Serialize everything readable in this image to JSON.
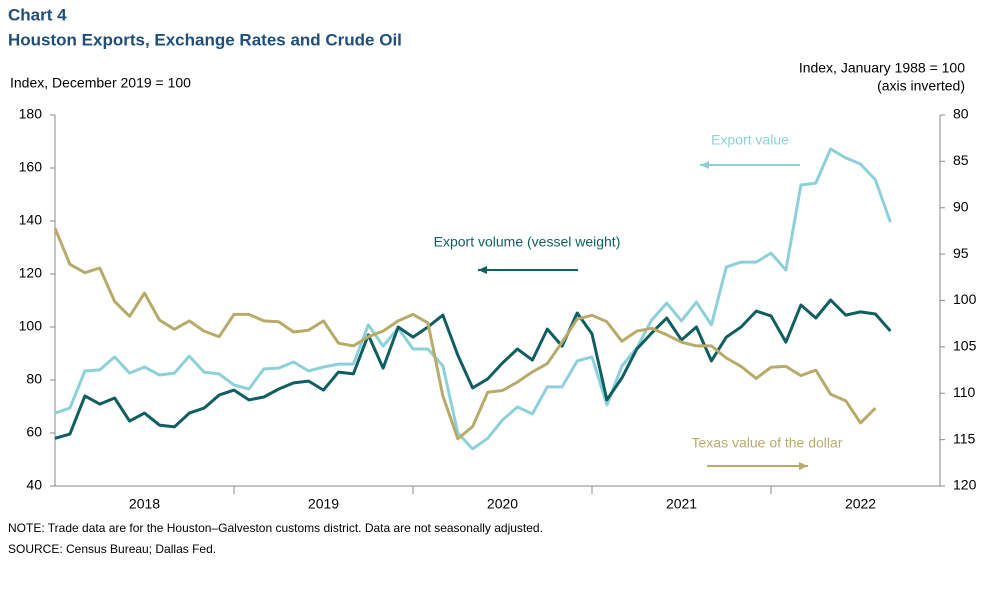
{
  "chart_data": {
    "type": "line",
    "label": "Chart 4",
    "title": "Houston Exports, Exchange Rates and Crude Oil",
    "ylabel": "Index,  December 2019 = 100",
    "y2label": "Index,  January  1988 = 100",
    "y2label_note": "(axis inverted)",
    "note": "NOTE: Trade  data are for the Houston–Galveston  customs district. Data are not seasonally adjusted.",
    "source": "SOURCE: Census Bureau;  Dallas Fed.",
    "x": [
      2018,
      2018.083,
      2018.167,
      2018.25,
      2018.333,
      2018.417,
      2018.5,
      2018.583,
      2018.667,
      2018.75,
      2018.833,
      2018.917,
      2019,
      2019.083,
      2019.167,
      2019.25,
      2019.333,
      2019.417,
      2019.5,
      2019.583,
      2019.667,
      2019.75,
      2019.833,
      2019.917,
      2020,
      2020.083,
      2020.167,
      2020.25,
      2020.333,
      2020.417,
      2020.5,
      2020.583,
      2020.667,
      2020.75,
      2020.833,
      2020.917,
      2021,
      2021.083,
      2021.167,
      2021.25,
      2021.333,
      2021.417,
      2021.5,
      2021.583,
      2021.667,
      2021.75,
      2021.833,
      2021.917,
      2022,
      2022.083,
      2022.167,
      2022.25,
      2022.333,
      2022.417,
      2022.5,
      2022.583,
      2022.667
    ],
    "xlim": [
      2018,
      2022.944
    ],
    "xticks": [
      {
        "value": 2018.5,
        "label": "2018"
      },
      {
        "value": 2019.5,
        "label": "2019"
      },
      {
        "value": 2020.5,
        "label": "2020"
      },
      {
        "value": 2021.5,
        "label": "2021"
      },
      {
        "value": 2022.5,
        "label": "2022"
      }
    ],
    "xdividers": [
      2019,
      2020,
      2021,
      2022
    ],
    "ylim": [
      40,
      180
    ],
    "yticks": [
      40,
      60,
      80,
      100,
      120,
      140,
      160,
      180
    ],
    "y2lim": [
      80,
      120
    ],
    "y2ticks": [
      80,
      85,
      90,
      95,
      100,
      105,
      110,
      115,
      120
    ],
    "y2_inverted": true,
    "series": [
      {
        "name": "Export value",
        "color": "#8dd0d9",
        "values": [
          67.5,
          69.4,
          83.4,
          83.8,
          88.7,
          82.6,
          84.9,
          81.9,
          82.6,
          89,
          83,
          82.3,
          78.1,
          76.6,
          84.2,
          84.5,
          86.8,
          83.4,
          84.9,
          86,
          86,
          100.8,
          92.8,
          99.6,
          91.7,
          91.7,
          85.3,
          60,
          54,
          58,
          64.9,
          69.8,
          67.2,
          77.4,
          77.4,
          87.2,
          88.7,
          70.6,
          85.3,
          92.1,
          102.6,
          109,
          102.3,
          109.4,
          100.8,
          122.6,
          124.5,
          124.5,
          127.9,
          121.5,
          153.6,
          154.3,
          167.2,
          163.8,
          161.5,
          155.5,
          139.6
        ]
      },
      {
        "name": "Export volume (vessel weight)",
        "color": "#0f5e62",
        "values": [
          58,
          59.6,
          74,
          70.9,
          73.2,
          64.5,
          67.5,
          63,
          62.3,
          67.5,
          69.4,
          74.3,
          76.2,
          72.5,
          73.6,
          76.6,
          78.9,
          79.6,
          76.2,
          83,
          82.3,
          97,
          84.5,
          100,
          96.2,
          100,
          104.5,
          89.4,
          77,
          80.4,
          86.4,
          91.7,
          87.5,
          99.2,
          92.8,
          105.3,
          97.4,
          72.5,
          80.8,
          91.7,
          97.7,
          103.4,
          95.1,
          100,
          87.2,
          96.2,
          100,
          106,
          104.2,
          94.3,
          108.3,
          103.4,
          110.2,
          104.5,
          105.7,
          104.9,
          98.5
        ]
      },
      {
        "name": "Texas value  of the dollar",
        "color": "#b7ab6a",
        "axis": "y2",
        "values": [
          92.2,
          96.1,
          97,
          96.5,
          100.1,
          101.7,
          99.2,
          102.1,
          103.1,
          102.2,
          103.3,
          103.9,
          101.5,
          101.5,
          102.2,
          102.3,
          103.4,
          103.2,
          102.2,
          104.6,
          104.9,
          103.9,
          103.3,
          102.2,
          101.5,
          102.4,
          110.3,
          114.9,
          113.6,
          109.9,
          109.7,
          108.8,
          107.7,
          106.8,
          104.5,
          102,
          101.6,
          102.3,
          104.4,
          103.3,
          103,
          103.7,
          104.5,
          104.9,
          104.9,
          106.2,
          107.1,
          108.4,
          107.2,
          107.1,
          108.1,
          107.5,
          110.1,
          110.8,
          113.2,
          111.6,
          null
        ]
      }
    ]
  }
}
